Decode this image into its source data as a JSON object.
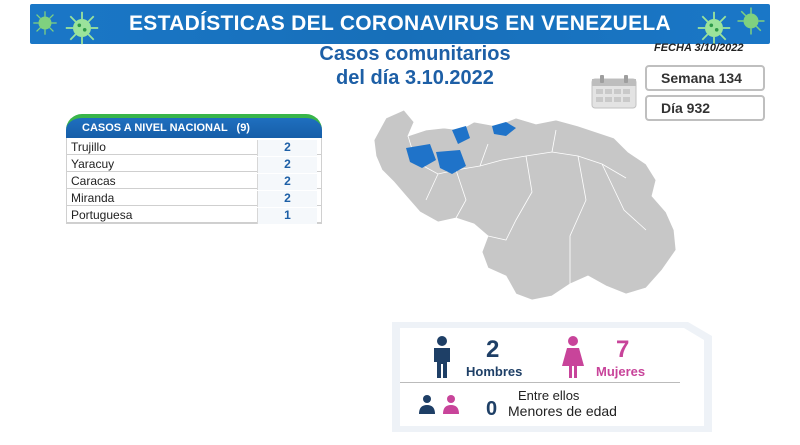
{
  "header": {
    "title": "ESTADÍSTICAS DEL CORONAVIRUS EN VENEZUELA"
  },
  "date_label": "FECHA 3/10/2022",
  "subtitle": {
    "line1": "Casos comunitarios",
    "line2": "del día 3.10.2022"
  },
  "week_label": "Semana 134",
  "day_label": "Día 932",
  "table": {
    "header_label": "CASOS A NIVEL NACIONAL",
    "total": "(9)",
    "rows": [
      {
        "state": "Trujillo",
        "value": "2"
      },
      {
        "state": "Yaracuy",
        "value": "2"
      },
      {
        "state": "Caracas",
        "value": "2"
      },
      {
        "state": "Miranda",
        "value": "2"
      },
      {
        "state": "Portuguesa",
        "value": "1"
      }
    ]
  },
  "demographics": {
    "men_count": "2",
    "men_label": "Hombres",
    "women_count": "7",
    "women_label": "Mujeres",
    "among_label": "Entre ellos",
    "minors_count": "0",
    "minors_label": "Menores de edad"
  },
  "colors": {
    "brand_blue": "#1a77c7",
    "title_blue": "#1d5fa6",
    "accent_green": "#39b54a",
    "women_pink": "#c8449a",
    "men_navy": "#1e3f66",
    "map_grey": "#c7c7c7",
    "map_highlight": "#1f73c9"
  },
  "icons": [
    "virus-icon",
    "calendar-icon",
    "man-icon",
    "woman-icon",
    "children-icon"
  ]
}
